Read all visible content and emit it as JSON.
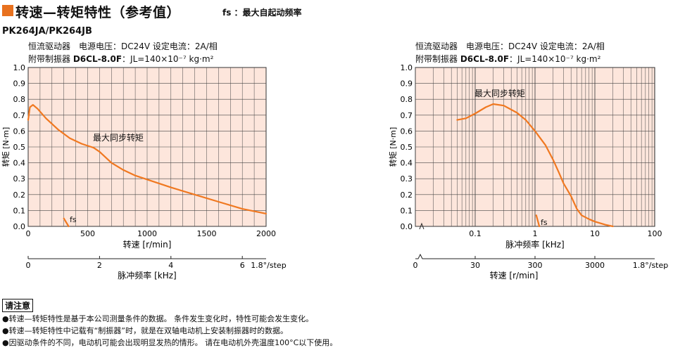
{
  "header": {
    "title": "转速—转矩特性（参考值）",
    "fs_note": "fs ：最大自起动频率"
  },
  "model": "PK264JA/PK264JB",
  "conditions": {
    "line1": "恒流驱动器　电源电压：DC24V 设定电流：2A/相",
    "line2_prefix": "附带制振器 ",
    "line2_model": "D6CL-8.0F",
    "line2_suffix": "：JL=140×10⁻⁷ kg·m²"
  },
  "chart_data": [
    {
      "type": "line",
      "x_scale": "linear",
      "xlabel": "转速 [r/min]",
      "ylabel": "转矩 [N·m]",
      "xlim": [
        0,
        2000
      ],
      "ylim": [
        0,
        1.0
      ],
      "x_ticks": [
        0,
        500,
        1000,
        1500,
        2000
      ],
      "y_ticks": [
        0,
        0.1,
        0.2,
        0.3,
        0.4,
        0.5,
        0.6,
        0.7,
        0.8,
        0.9,
        1.0
      ],
      "grid": true,
      "secondary_axis": {
        "label": "脉冲频率 [kHz]",
        "ticks": [
          0,
          2,
          4,
          6
        ],
        "step_label": "1.8°/step"
      },
      "series": [
        {
          "name": "最大同步转矩",
          "color": "#f07820",
          "x": [
            0,
            15,
            40,
            80,
            150,
            250,
            350,
            450,
            550,
            600,
            700,
            800,
            900,
            1000,
            1200,
            1400,
            1600,
            1800,
            2000
          ],
          "y": [
            0.67,
            0.75,
            0.765,
            0.74,
            0.68,
            0.61,
            0.555,
            0.52,
            0.495,
            0.47,
            0.4,
            0.355,
            0.32,
            0.295,
            0.245,
            0.2,
            0.155,
            0.11,
            0.08
          ]
        },
        {
          "name": "fs",
          "color": "#f07820",
          "x": [
            300,
            340
          ],
          "y": [
            0.05,
            0.0
          ]
        }
      ]
    },
    {
      "type": "line",
      "x_scale": "log",
      "xlabel": "脉冲频率 [kHz]",
      "ylabel": "转矩 [N·m]",
      "xlim": [
        0.01,
        100
      ],
      "ylim": [
        0,
        1.0
      ],
      "x_ticks": [
        0.1,
        1,
        10,
        100
      ],
      "y_ticks": [
        0,
        0.1,
        0.2,
        0.3,
        0.4,
        0.5,
        0.6,
        0.7,
        0.8,
        0.9,
        1.0
      ],
      "grid": true,
      "secondary_axis": {
        "label": "转速 [r/min]",
        "ticks": [
          30,
          300,
          3000
        ],
        "step_label": "1.8°/step"
      },
      "series": [
        {
          "name": "最大同步转矩",
          "color": "#f07820",
          "x": [
            0.05,
            0.07,
            0.1,
            0.15,
            0.2,
            0.3,
            0.5,
            0.7,
            1.0,
            1.5,
            2.0,
            2.5,
            3.0,
            4.0,
            5.0,
            6.0,
            8.0,
            10,
            15,
            20
          ],
          "y": [
            0.67,
            0.68,
            0.71,
            0.75,
            0.77,
            0.76,
            0.715,
            0.67,
            0.6,
            0.51,
            0.42,
            0.34,
            0.27,
            0.19,
            0.11,
            0.07,
            0.045,
            0.03,
            0.01,
            0.0
          ]
        },
        {
          "name": "fs",
          "color": "#f07820",
          "x": [
            1.05,
            1.18
          ],
          "y": [
            0.07,
            0.0
          ]
        }
      ]
    }
  ],
  "notes": {
    "title": "请注意",
    "items": [
      "●转速—转矩特性是基于本公司测量条件的数据。 条件发生变化时，特性可能会发生变化。",
      "●转速—转矩特性中记载有“制振器”时，就是在双轴电动机上安装制振器时的数据。",
      "●因驱动条件的不同，电动机可能会出现明显发热的情形。 请在电动机外壳温度100°C以下使用。"
    ]
  },
  "colors": {
    "accent": "#e8711e",
    "plot_bg": "#fde6dc",
    "curve": "#f07820"
  }
}
